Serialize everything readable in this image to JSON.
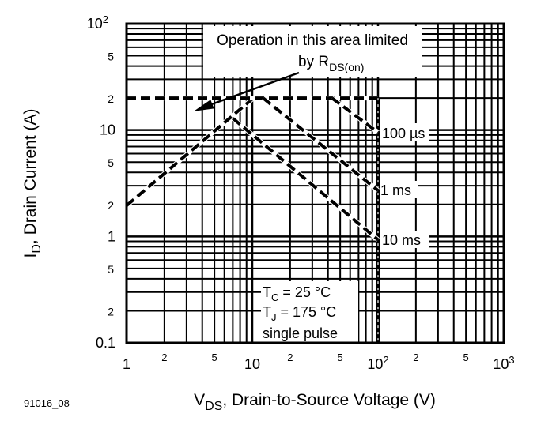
{
  "chart_data": {
    "type": "line",
    "x_scale": "log",
    "y_scale": "log",
    "xlim": [
      1,
      1000
    ],
    "ylim": [
      0.1,
      100
    ],
    "grid": true,
    "xlabel": {
      "main": "V",
      "sub": "DS",
      "rest": ", Drain-to-Source Voltage (V)"
    },
    "ylabel": {
      "main": "I",
      "sub": "D",
      "rest": ", Drain Current (A)"
    },
    "x_ticks": [
      {
        "value": 1,
        "base": "1",
        "exp": "",
        "minor": false
      },
      {
        "value": 2,
        "base": "2",
        "exp": "",
        "minor": true
      },
      {
        "value": 5,
        "base": "5",
        "exp": "",
        "minor": true
      },
      {
        "value": 10,
        "base": "10",
        "exp": "",
        "minor": false
      },
      {
        "value": 20,
        "base": "2",
        "exp": "",
        "minor": true
      },
      {
        "value": 50,
        "base": "5",
        "exp": "",
        "minor": true
      },
      {
        "value": 100,
        "base": "10",
        "exp": "2",
        "minor": false
      },
      {
        "value": 200,
        "base": "2",
        "exp": "",
        "minor": true
      },
      {
        "value": 500,
        "base": "5",
        "exp": "",
        "minor": true
      },
      {
        "value": 1000,
        "base": "10",
        "exp": "3",
        "minor": false
      }
    ],
    "y_ticks": [
      {
        "value": 100,
        "base": "10",
        "exp": "2"
      },
      {
        "value": 50,
        "base": "5",
        "exp": ""
      },
      {
        "value": 20,
        "base": "2",
        "exp": ""
      },
      {
        "value": 10,
        "base": "10",
        "exp": ""
      },
      {
        "value": 5,
        "base": "5",
        "exp": ""
      },
      {
        "value": 2,
        "base": "2",
        "exp": ""
      },
      {
        "value": 1,
        "base": "1",
        "exp": ""
      },
      {
        "value": 0.5,
        "base": "5",
        "exp": ""
      },
      {
        "value": 0.2,
        "base": "2",
        "exp": ""
      },
      {
        "value": 0.1,
        "base": "0.1",
        "exp": ""
      }
    ],
    "series": [
      {
        "id": "rds-on-limit",
        "style": "dashed",
        "points": [
          [
            1,
            1.95
          ],
          [
            10.2,
            20
          ]
        ]
      },
      {
        "id": "current-limit",
        "style": "dashed",
        "points": [
          [
            1,
            20
          ],
          [
            100,
            20
          ]
        ]
      },
      {
        "id": "voltage-limit",
        "style": "dash-dot",
        "points": [
          [
            100,
            20
          ],
          [
            100,
            0.1
          ]
        ]
      },
      {
        "id": "100us",
        "name": "100 µs",
        "style": "dashed",
        "points": [
          [
            43,
            20
          ],
          [
            100,
            9.5
          ]
        ]
      },
      {
        "id": "1ms",
        "name": "1 ms",
        "style": "dashed",
        "points": [
          [
            12.2,
            20
          ],
          [
            100,
            2.7
          ]
        ]
      },
      {
        "id": "10ms",
        "name": "10 ms",
        "style": "dashed",
        "points": [
          [
            7,
            12.9
          ],
          [
            100,
            0.93
          ]
        ]
      }
    ],
    "annotations": {
      "rds_note_line1": "Operation in this area limited",
      "rds_note_line2_main": "by R",
      "rds_note_line2_sub": "DS(on)",
      "conditions": [
        {
          "main": "T",
          "sub": "C",
          "rest": " = 25 °C"
        },
        {
          "main": "T",
          "sub": "J",
          "rest": " = 175 °C"
        },
        {
          "main": "single pulse",
          "sub": "",
          "rest": ""
        }
      ]
    },
    "figure_id": "91016_08"
  }
}
